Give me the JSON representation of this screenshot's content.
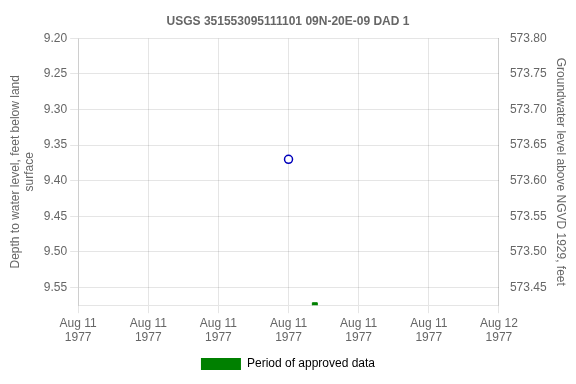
{
  "chart_data": {
    "type": "scatter",
    "title": "USGS 351553095111101 09N-20E-09 DAD 1",
    "y_label": "Depth to water level, feet below land\nsurface",
    "y2_label": "Groundwater level above NGVD 1929, feet",
    "xlim": [
      0,
      24
    ],
    "xticks": [
      {
        "value": 0,
        "label": "Aug 11\n1977"
      },
      {
        "value": 4,
        "label": "Aug 11\n1977"
      },
      {
        "value": 8,
        "label": "Aug 11\n1977"
      },
      {
        "value": 12,
        "label": "Aug 11\n1977"
      },
      {
        "value": 16,
        "label": "Aug 11\n1977"
      },
      {
        "value": 20,
        "label": "Aug 11\n1977"
      },
      {
        "value": 24,
        "label": "Aug 12\n1977"
      }
    ],
    "ylim": [
      9.575,
      9.2
    ],
    "yticks": [
      {
        "value": 9.2,
        "label": "9.20"
      },
      9.25,
      {
        "value": 9.3,
        "label": "9.30"
      },
      9.35,
      {
        "value": 9.4,
        "label": "9.40"
      },
      9.45,
      {
        "value": 9.5,
        "label": "9.50"
      },
      9.55
    ],
    "y2lim": [
      573.425,
      573.8
    ],
    "y2ticks": [
      {
        "value": 573.8,
        "label": "573.80"
      },
      573.75,
      {
        "value": 573.7,
        "label": "573.70"
      },
      573.65,
      {
        "value": 573.6,
        "label": "573.60"
      },
      573.55,
      {
        "value": 573.5,
        "label": "573.50"
      },
      573.45
    ],
    "grid": true,
    "legend": "bottom",
    "series": [
      {
        "color": "#0000bb",
        "marker": "circle-open",
        "x": [
          12.0
        ],
        "values": [
          9.37
        ]
      },
      {
        "name": "Period of approved data",
        "color": "#008000",
        "marker": "square",
        "x": [
          13.5
        ],
        "values": [
          9.575
        ]
      }
    ]
  }
}
